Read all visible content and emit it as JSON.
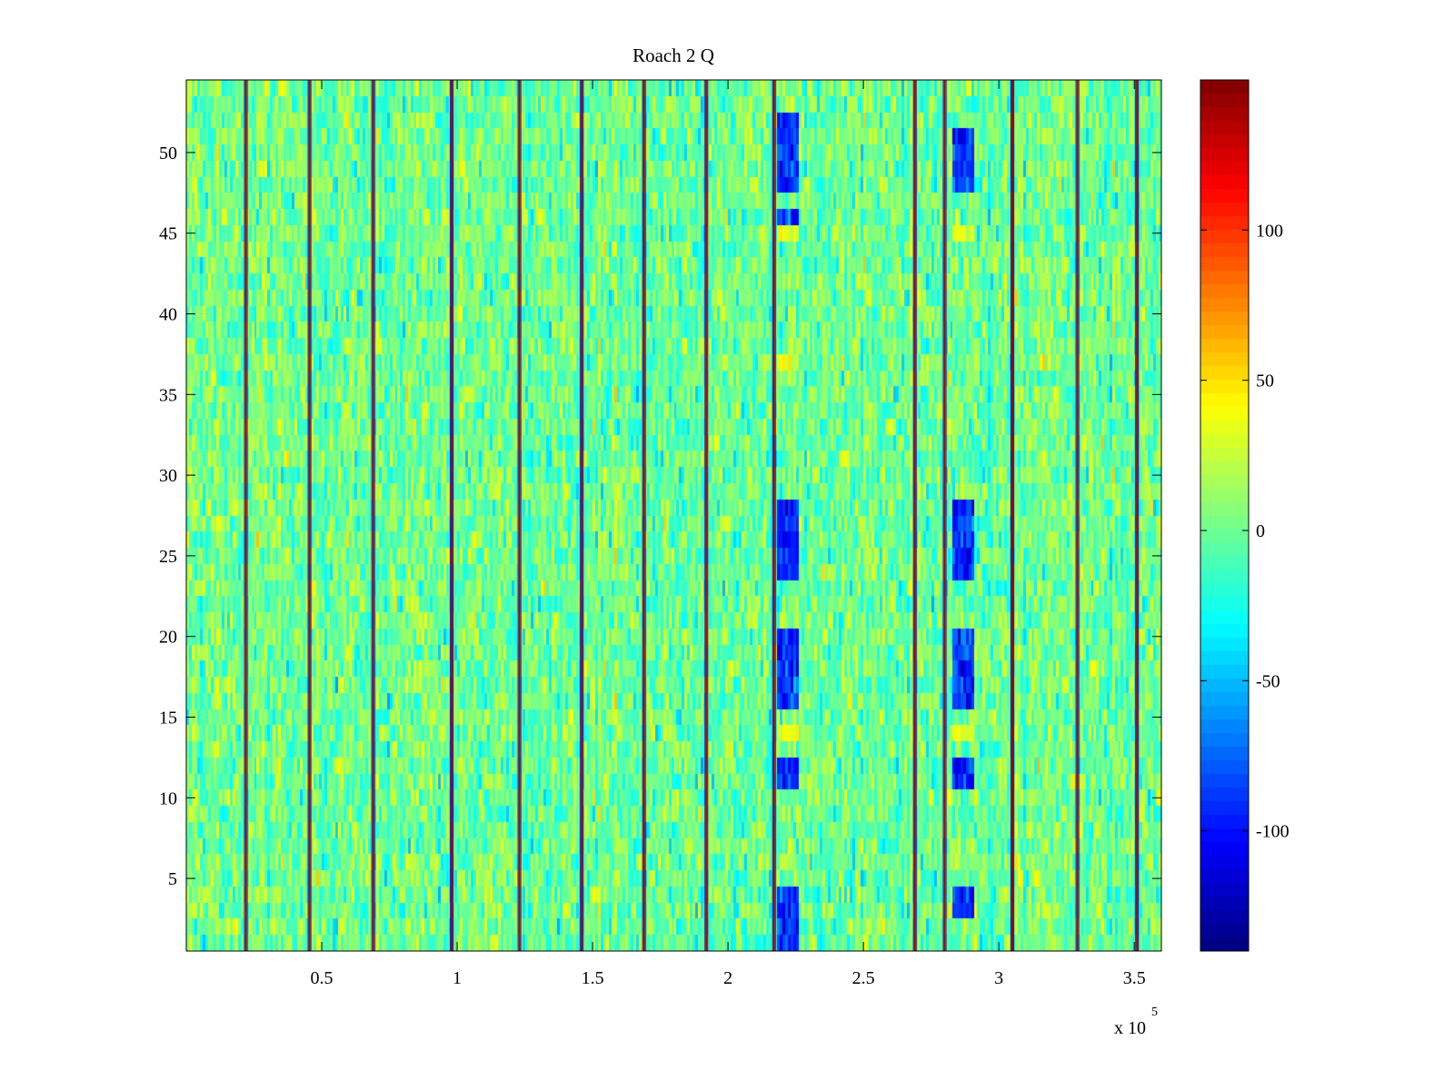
{
  "chart_data": {
    "type": "heatmap",
    "title": "Roach 2 Q",
    "xlabel": "",
    "ylabel": "",
    "x_multiplier_label": "x 10",
    "x_multiplier_exponent": "5",
    "xlim": [
      0.0,
      3.6
    ],
    "ylim": [
      0.5,
      54.5
    ],
    "x_ticks": [
      0.5,
      1,
      1.5,
      2,
      2.5,
      3,
      3.5
    ],
    "x_tick_labels": [
      "0.5",
      "1",
      "1.5",
      "2",
      "2.5",
      "3",
      "3.5"
    ],
    "y_ticks": [
      5,
      10,
      15,
      20,
      25,
      30,
      35,
      40,
      45,
      50
    ],
    "y_tick_labels": [
      "5",
      "10",
      "15",
      "20",
      "25",
      "30",
      "35",
      "40",
      "45",
      "50"
    ],
    "rows": 54,
    "columns": 360,
    "colormap": "jet",
    "clim": [
      -140,
      150
    ],
    "colorbar": {
      "ticks": [
        -100,
        -50,
        0,
        50,
        100
      ],
      "tick_labels": [
        "-100",
        "-50",
        "0",
        "50",
        "100"
      ]
    },
    "background_mean": 0,
    "background_spread": 18,
    "vertical_stripe_positions": [
      0.22,
      0.455,
      0.69,
      0.98,
      1.23,
      1.46,
      1.69,
      1.92,
      2.17,
      2.69,
      2.8,
      3.05,
      3.29,
      3.51
    ],
    "vertical_stripe_value": 140,
    "vertical_stripe_edge_value": -120,
    "low_bands": [
      {
        "x_range": [
          2.18,
          2.26
        ],
        "rows": [
          1,
          2,
          3,
          4,
          11,
          12,
          16,
          17,
          18,
          19,
          20,
          24,
          25,
          26,
          27,
          28,
          46,
          48,
          49,
          50,
          51,
          52
        ],
        "value": -90
      },
      {
        "x_range": [
          2.83,
          2.91
        ],
        "rows": [
          3,
          4,
          11,
          12,
          16,
          17,
          18,
          19,
          20,
          24,
          25,
          26,
          27,
          28,
          48,
          49,
          50,
          51
        ],
        "value": -90
      }
    ],
    "high_bands": [
      {
        "x_range": [
          2.18,
          2.26
        ],
        "rows": [
          14,
          37,
          45
        ],
        "value": 35
      },
      {
        "x_range": [
          2.83,
          2.91
        ],
        "rows": [
          14,
          45
        ],
        "value": 35
      }
    ]
  }
}
